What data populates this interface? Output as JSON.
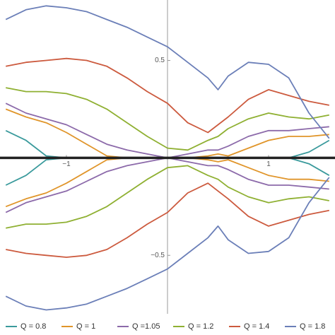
{
  "chart_data": {
    "type": "line",
    "x": [
      -1.6,
      -1.4,
      -1.2,
      -1.0,
      -0.8,
      -0.6,
      -0.4,
      -0.2,
      0,
      0.2,
      0.4,
      0.5,
      0.6,
      0.8,
      1.0,
      1.2,
      1.4,
      1.6
    ],
    "series": [
      {
        "name": "Q = 0.8",
        "color": "#3a9a9c",
        "values": [
          0.14,
          0.09,
          0.01,
          0,
          0,
          0,
          0,
          0,
          0,
          0,
          0,
          0,
          0,
          0,
          0,
          0,
          0.03,
          0.09
        ],
        "values_lower": [
          -0.14,
          -0.09,
          -0.01,
          0,
          0,
          0,
          0,
          0,
          0,
          0,
          0,
          0,
          0,
          0,
          0,
          0,
          -0.03,
          -0.09
        ]
      },
      {
        "name": "Q = 1",
        "color": "#e0952a",
        "values": [
          0.25,
          0.21,
          0.18,
          0.13,
          0.07,
          0.01,
          0,
          0,
          0,
          0,
          0.01,
          0.02,
          0.01,
          0.05,
          0.09,
          0.11,
          0.11,
          0.12
        ],
        "values_lower": [
          -0.25,
          -0.21,
          -0.18,
          -0.13,
          -0.07,
          -0.01,
          0,
          0,
          0,
          0,
          -0.01,
          -0.02,
          -0.01,
          -0.05,
          -0.09,
          -0.11,
          -0.11,
          -0.12
        ]
      },
      {
        "name": "Q =1.05",
        "color": "#8c6aaa",
        "values": [
          0.28,
          0.23,
          0.2,
          0.17,
          0.12,
          0.07,
          0.04,
          0.02,
          0,
          0.02,
          0.04,
          0.04,
          0.06,
          0.11,
          0.14,
          0.14,
          0.15,
          0.16
        ],
        "values_lower": [
          -0.28,
          -0.23,
          -0.2,
          -0.17,
          -0.12,
          -0.07,
          -0.04,
          -0.02,
          0,
          -0.02,
          -0.04,
          -0.04,
          -0.06,
          -0.11,
          -0.14,
          -0.14,
          -0.15,
          -0.16
        ]
      },
      {
        "name": "Q = 1.2",
        "color": "#8fb032",
        "values": [
          0.36,
          0.34,
          0.34,
          0.33,
          0.3,
          0.25,
          0.18,
          0.11,
          0.05,
          0.04,
          0.09,
          0.11,
          0.15,
          0.2,
          0.23,
          0.21,
          0.2,
          0.22
        ],
        "values_lower": [
          -0.36,
          -0.34,
          -0.34,
          -0.33,
          -0.3,
          -0.25,
          -0.18,
          -0.11,
          -0.05,
          -0.04,
          -0.09,
          -0.11,
          -0.15,
          -0.2,
          -0.23,
          -0.21,
          -0.2,
          -0.22
        ]
      },
      {
        "name": "Q = 1.4",
        "color": "#cc5a3e",
        "values": [
          0.47,
          0.49,
          0.5,
          0.51,
          0.5,
          0.47,
          0.41,
          0.34,
          0.28,
          0.18,
          0.13,
          0.17,
          0.21,
          0.3,
          0.35,
          0.32,
          0.29,
          0.27
        ],
        "values_lower": [
          -0.47,
          -0.49,
          -0.5,
          -0.51,
          -0.5,
          -0.47,
          -0.41,
          -0.34,
          -0.28,
          -0.18,
          -0.13,
          -0.17,
          -0.21,
          -0.3,
          -0.35,
          -0.32,
          -0.29,
          -0.27
        ]
      },
      {
        "name": "Q = 1.8",
        "color": "#6b7fb8",
        "values": [
          0.71,
          0.76,
          0.78,
          0.77,
          0.75,
          0.71,
          0.67,
          0.62,
          0.57,
          0.49,
          0.41,
          0.35,
          0.42,
          0.49,
          0.48,
          0.41,
          0.23,
          0.1
        ],
        "values_lower": [
          -0.71,
          -0.76,
          -0.78,
          -0.77,
          -0.75,
          -0.71,
          -0.67,
          -0.62,
          -0.57,
          -0.49,
          -0.41,
          -0.35,
          -0.42,
          -0.49,
          -0.48,
          -0.41,
          -0.23,
          -0.1
        ]
      }
    ],
    "xlim": [
      -1.657,
      1.657
    ],
    "ylim": [
      -0.8,
      0.81
    ],
    "xticks": [
      {
        "value": -1,
        "label": "−1"
      },
      1
    ],
    "yticks": [
      {
        "value": -0.5,
        "label": "−0.5"
      },
      0.5
    ]
  }
}
